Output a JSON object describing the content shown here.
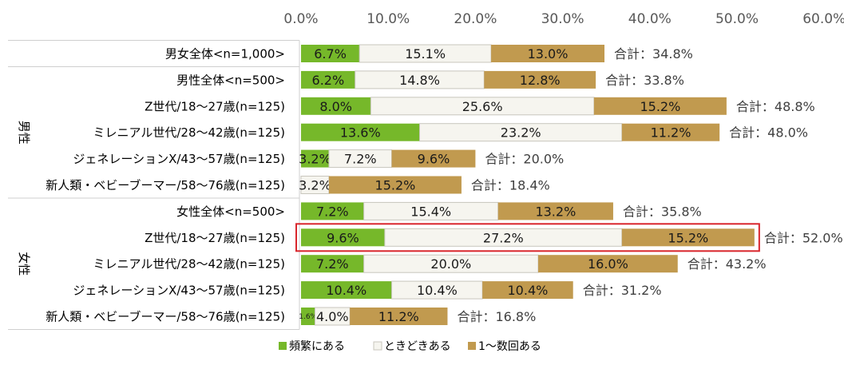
{
  "chart_data": {
    "type": "bar",
    "orientation": "horizontal",
    "stacked": true,
    "x_ticks": [
      "0.0%",
      "10.0%",
      "20.0%",
      "30.0%",
      "40.0%",
      "50.0%",
      "60.0%"
    ],
    "xlim": [
      0,
      60
    ],
    "grid": false,
    "legend_position": "bottom",
    "groups": [
      {
        "label": "男性",
        "rows": [
          1,
          5
        ]
      },
      {
        "label": "女性",
        "rows": [
          6,
          10
        ]
      }
    ],
    "categories": [
      "男女全体<n=1,000>",
      "男性全体<n=500>",
      "Z世代/18～27歳(n=125)",
      "ミレニアル世代/28～42歳(n=125)",
      "ジェネレーションX/43～57歳(n=125)",
      "新人類・ベビーブーマー/58～76歳(n=125)",
      "女性全体<n=500>",
      "Z世代/18～27歳(n=125)",
      "ミレニアル世代/28～42歳(n=125)",
      "ジェネレーションX/43～57歳(n=125)",
      "新人類・ベビーブーマー/58～76歳(n=125)"
    ],
    "series": [
      {
        "name": "頻繁にある",
        "color": "#76b82a",
        "values": [
          6.7,
          6.2,
          8.0,
          13.6,
          3.2,
          0,
          7.2,
          9.6,
          7.2,
          10.4,
          1.6
        ],
        "labels": [
          "6.7%",
          "6.2%",
          "8.0%",
          "13.6%",
          "3.2%",
          "",
          "7.2%",
          "9.6%",
          "7.2%",
          "10.4%",
          "1.6%"
        ]
      },
      {
        "name": "ときどきある",
        "color": "#f6f5ef",
        "values": [
          15.1,
          14.8,
          25.6,
          23.2,
          7.2,
          3.2,
          15.4,
          27.2,
          20.0,
          10.4,
          4.0
        ],
        "labels": [
          "15.1%",
          "14.8%",
          "25.6%",
          "23.2%",
          "7.2%",
          "3.2%",
          "15.4%",
          "27.2%",
          "20.0%",
          "10.4%",
          "4.0%"
        ]
      },
      {
        "name": "1～数回ある",
        "color": "#c19a4f",
        "values": [
          13.0,
          12.8,
          15.2,
          11.2,
          9.6,
          15.2,
          13.2,
          15.2,
          16.0,
          10.4,
          11.2
        ],
        "labels": [
          "13.0%",
          "12.8%",
          "15.2%",
          "11.2%",
          "9.6%",
          "15.2%",
          "13.2%",
          "15.2%",
          "16.0%",
          "10.4%",
          "11.2%"
        ]
      }
    ],
    "totals": [
      34.8,
      33.8,
      48.8,
      48.0,
      20.0,
      18.4,
      35.8,
      52.0,
      43.2,
      31.2,
      16.8
    ],
    "total_labels": [
      "合計：34.8%",
      "合計：33.8%",
      "合計：48.8%",
      "合計：48.0%",
      "合計：20.0%",
      "合計：18.4%",
      "合計：35.8%",
      "合計：52.0%",
      "合計：43.2%",
      "合計：31.2%",
      "合計：16.8%"
    ],
    "highlighted_row": 7,
    "highlight_color": "#d9262c"
  }
}
